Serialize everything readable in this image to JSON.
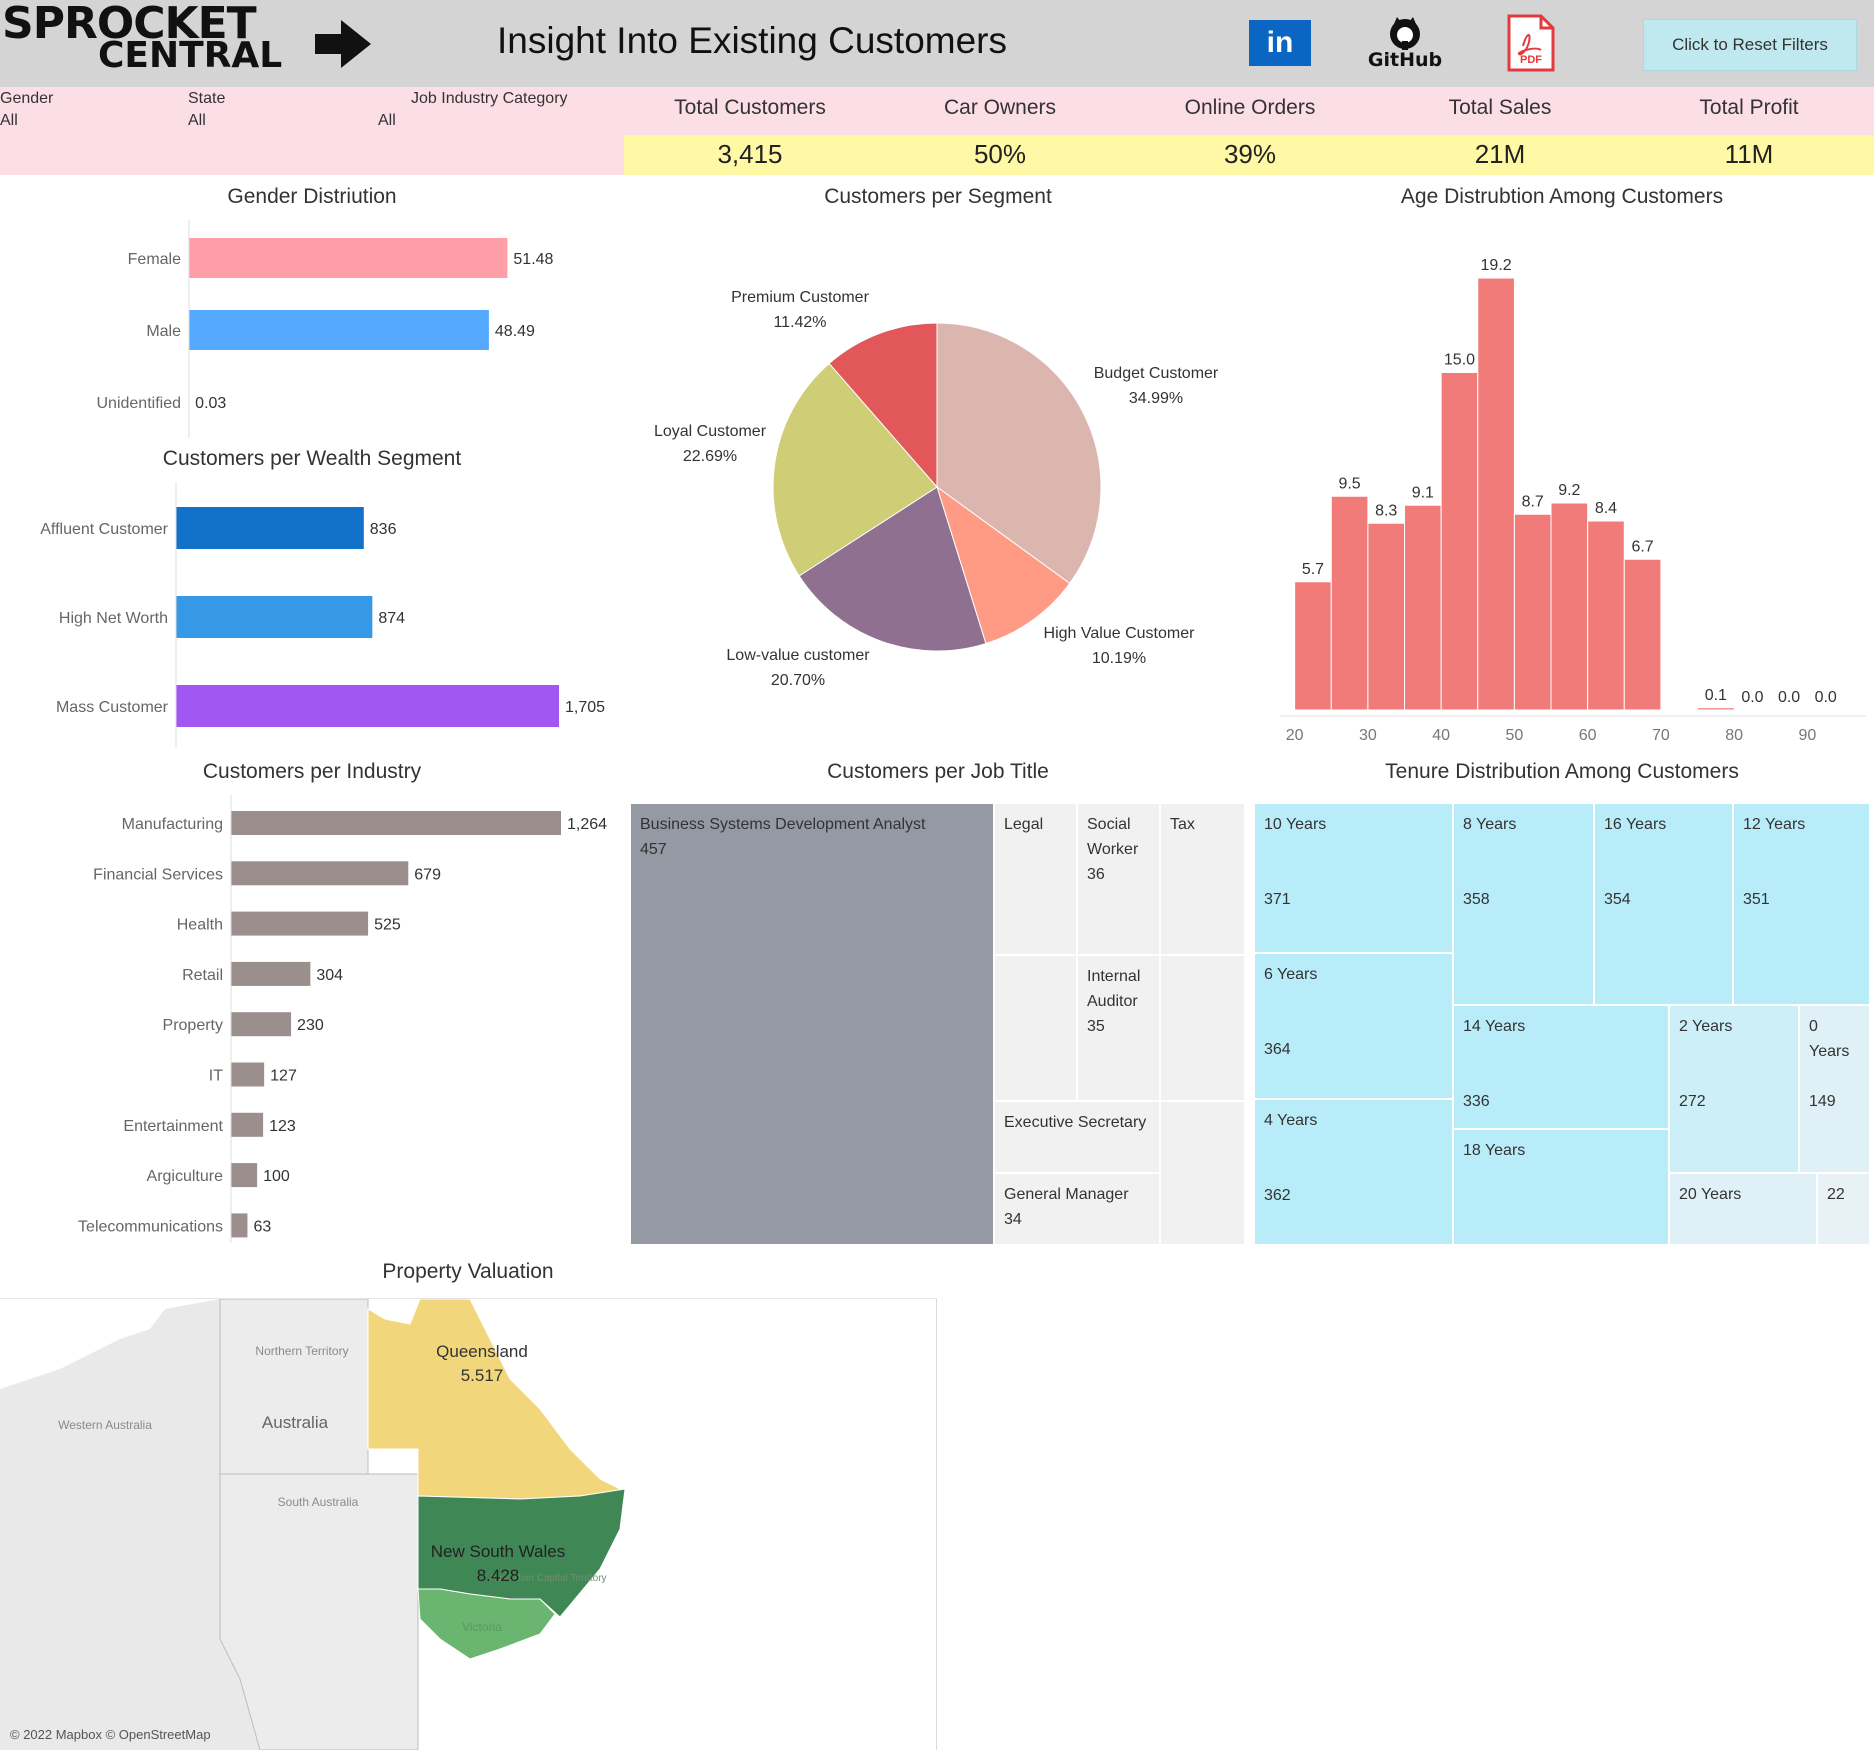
{
  "header": {
    "logo_line1": "SPROCKET",
    "logo_line2": "CENTRAL",
    "title": "Insight Into Existing Customers",
    "social": {
      "linkedin": "in",
      "github": "GitHub",
      "pdf": "PDF"
    },
    "reset_label": "Click to Reset Filters",
    "icons": [
      "arrow-right-icon",
      "linkedin-icon",
      "github-icon",
      "pdf-icon"
    ]
  },
  "filters": [
    {
      "label": "Gender",
      "value": "All"
    },
    {
      "label": "State",
      "value": "All"
    },
    {
      "label": "Job Industry Category",
      "value": "All"
    }
  ],
  "kpis": [
    {
      "label": "Total Customers",
      "value": "3,415"
    },
    {
      "label": "Car Owners",
      "value": "50%"
    },
    {
      "label": "Online Orders",
      "value": "39%"
    },
    {
      "label": "Total Sales",
      "value": "21M"
    },
    {
      "label": "Total Profit",
      "value": "11M"
    }
  ],
  "colors": {
    "header_bg": "#d4d4d4",
    "filter_bg": "#fcdee7",
    "kpi_value_bg": "#fff9a6",
    "female": "#ff9ea6",
    "male": "#55aaff",
    "affluent": "#1272c9",
    "high_net_worth": "#3599e8",
    "mass": "#a256f2",
    "industry": "#9a8f8c",
    "age": "#f07b79",
    "treemap_job_main": "#9499a4",
    "treemap_job_other": "#f1f1f1",
    "tenure_main": "#b9ecf9",
    "tenure_light": "#dff0f6"
  },
  "chart_data": [
    {
      "type": "bar",
      "title": "Gender Distriution",
      "categories": [
        "Female",
        "Male",
        "Unidentified"
      ],
      "values": [
        51.48,
        48.49,
        0.03
      ],
      "value_labels": [
        "51.48",
        "48.49",
        "0.03"
      ],
      "orientation": "horizontal"
    },
    {
      "type": "bar",
      "title": "Customers per Wealth Segment",
      "categories": [
        "Affluent Customer",
        "High Net Worth",
        "Mass Customer"
      ],
      "values": [
        836,
        874,
        1705
      ],
      "value_labels": [
        "836",
        "874",
        "1,705"
      ],
      "orientation": "horizontal"
    },
    {
      "type": "pie",
      "title": "Customers per Segment",
      "categories": [
        "Budget Customer",
        "High Value Customer",
        "Low-value customer",
        "Loyal Customer",
        "Premium Customer"
      ],
      "values": [
        34.99,
        10.19,
        20.7,
        22.69,
        11.42
      ],
      "value_labels": [
        "34.99%",
        "10.19%",
        "20.70%",
        "22.69%",
        "11.42%"
      ],
      "colors": [
        "#dbb6ae",
        "#ff9a85",
        "#907090",
        "#cfcd76",
        "#e2575a"
      ]
    },
    {
      "type": "bar",
      "title": "Age Distrubtion Among Customers",
      "bins": [
        [
          20,
          25
        ],
        [
          25,
          30
        ],
        [
          30,
          35
        ],
        [
          35,
          40
        ],
        [
          40,
          45
        ],
        [
          45,
          50
        ],
        [
          50,
          55
        ],
        [
          55,
          60
        ],
        [
          60,
          65
        ],
        [
          65,
          70
        ],
        [
          75,
          80
        ],
        [
          80,
          85
        ],
        [
          85,
          90
        ],
        [
          90,
          95
        ]
      ],
      "values": [
        5.7,
        9.5,
        8.3,
        9.1,
        15.0,
        19.2,
        8.7,
        9.2,
        8.4,
        6.7,
        0.1,
        0.0,
        0.0,
        0.0
      ],
      "value_labels": [
        "5.7",
        "9.5",
        "8.3",
        "9.1",
        "15.0",
        "19.2",
        "8.7",
        "9.2",
        "8.4",
        "6.7",
        "0.1",
        "0.0",
        "0.0",
        "0.0"
      ],
      "xlim": [
        18,
        98
      ],
      "ylim": [
        0,
        20
      ],
      "xticks": [
        20,
        30,
        40,
        50,
        60,
        70,
        80,
        90
      ]
    },
    {
      "type": "bar",
      "title": "Customers per Industry",
      "categories": [
        "Manufacturing",
        "Financial Services",
        "Health",
        "Retail",
        "Property",
        "IT",
        "Entertainment",
        "Argiculture",
        "Telecommunications"
      ],
      "values": [
        1264,
        679,
        525,
        304,
        230,
        127,
        123,
        100,
        63
      ],
      "value_labels": [
        "1,264",
        "679",
        "525",
        "304",
        "230",
        "127",
        "123",
        "100",
        "63"
      ],
      "orientation": "horizontal"
    },
    {
      "type": "treemap",
      "title": "Customers per Job Title",
      "items": [
        {
          "label": "Business Systems Development Analyst",
          "value": "457"
        },
        {
          "label": "Legal",
          "value": ""
        },
        {
          "label": "Social Worker",
          "value": "36"
        },
        {
          "label": "Tax",
          "value": ""
        },
        {
          "label": "Internal Auditor",
          "value": "35"
        },
        {
          "label": "Executive Secretary",
          "value": ""
        },
        {
          "label": "General Manager",
          "value": "34"
        }
      ]
    },
    {
      "type": "treemap",
      "title": "Tenure Distribution Among Customers",
      "items": [
        {
          "label": "10 Years",
          "value": "371"
        },
        {
          "label": "8 Years",
          "value": "358"
        },
        {
          "label": "16 Years",
          "value": "354"
        },
        {
          "label": "12 Years",
          "value": "351"
        },
        {
          "label": "6 Years",
          "value": "364"
        },
        {
          "label": "14 Years",
          "value": "336"
        },
        {
          "label": "2 Years",
          "value": "272"
        },
        {
          "label": "0 Years",
          "value": "149"
        },
        {
          "label": "4 Years",
          "value": "362"
        },
        {
          "label": "18 Years",
          "value": ""
        },
        {
          "label": "20 Years",
          "value": ""
        },
        {
          "label": "",
          "value": "22"
        }
      ]
    }
  ],
  "map": {
    "title": "Property Valuation",
    "regions": [
      {
        "name": "Queensland",
        "value": "5.517"
      },
      {
        "name": "New South Wales",
        "value": "8.428"
      }
    ],
    "basemap_labels": {
      "northern_territory": "Northern Territory",
      "western_australia": "Western Australia",
      "south_australia": "South Australia",
      "country": "Australia",
      "act": "Australian Capital Territory",
      "victoria": "Victoria"
    },
    "attribution": "© 2022 Mapbox © OpenStreetMap"
  }
}
